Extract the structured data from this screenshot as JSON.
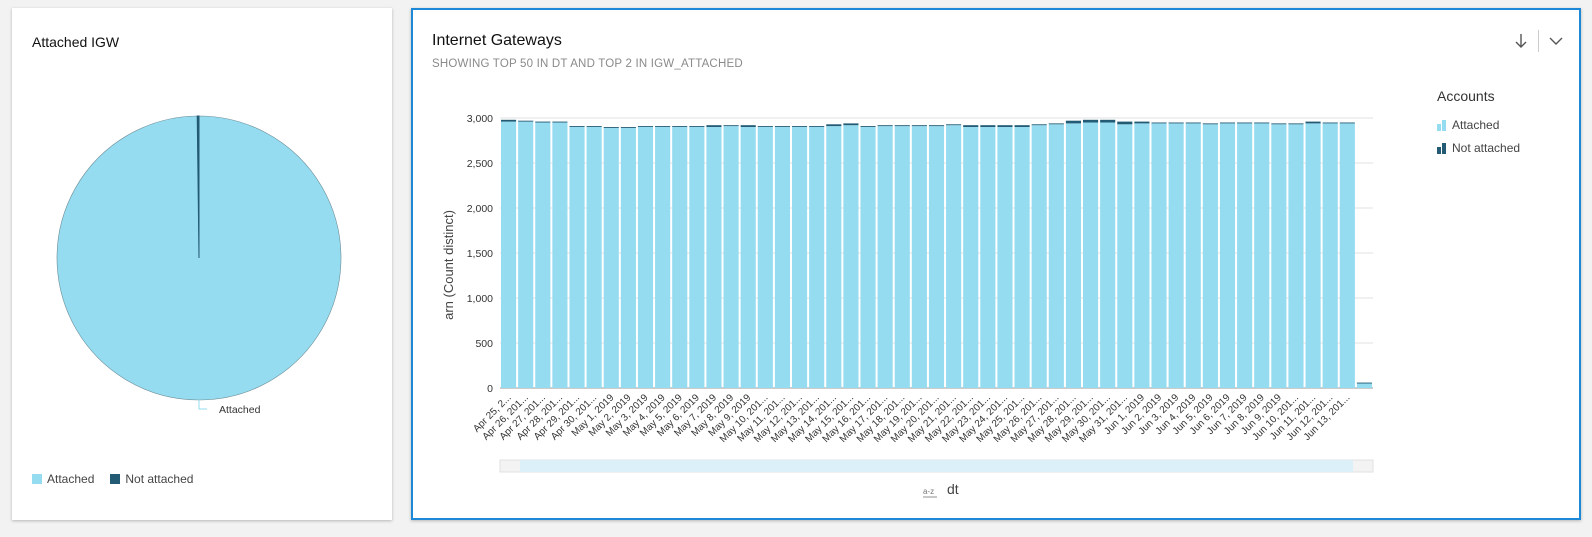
{
  "pie_card": {
    "title": "Attached IGW",
    "slice_label": "Attached",
    "legend": [
      {
        "label": "Attached",
        "color": "#95dcf0"
      },
      {
        "label": "Not attached",
        "color": "#235a74"
      }
    ]
  },
  "bar_card": {
    "title": "Internet Gateways",
    "subtitle": "SHOWING TOP 50 IN DT AND TOP 2 IN IGW_ATTACHED",
    "ylabel": "arn (Count distinct)",
    "xlabel": "dt",
    "sort_icon": "az-sort-icon",
    "legend_title": "Accounts",
    "legend": [
      {
        "label": "Attached",
        "color": "#95dcf0"
      },
      {
        "label": "Not attached",
        "color": "#235a74"
      }
    ],
    "icons": [
      "download-arrow-icon",
      "chevron-down-icon"
    ]
  },
  "chart_data": [
    {
      "type": "pie",
      "title": "Attached IGW",
      "slices": [
        {
          "label": "Attached",
          "value": 0.998,
          "color": "#95dcf0"
        },
        {
          "label": "Not attached",
          "value": 0.002,
          "color": "#235a74"
        }
      ]
    },
    {
      "type": "bar",
      "stacked": true,
      "title": "Internet Gateways",
      "xlabel": "dt",
      "ylabel": "arn (Count distinct)",
      "ylim": [
        0,
        3000
      ],
      "yticks": [
        "0",
        "500",
        "1,000",
        "1,500",
        "2,000",
        "2,500",
        "3,000"
      ],
      "categories": [
        "Apr 25, 2...",
        "Apr 26, 201...",
        "Apr 27, 201...",
        "Apr 28, 201...",
        "Apr 29, 201...",
        "Apr 30, 201...",
        "May 1, 2019",
        "May 2, 2019",
        "May 3, 2019",
        "May 4, 2019",
        "May 5, 2019",
        "May 6, 2019",
        "May 7, 2019",
        "May 8, 2019",
        "May 9, 2019",
        "May 10, 201...",
        "May 11, 201...",
        "May 12, 201...",
        "May 13, 201...",
        "May 14, 201...",
        "May 15, 201...",
        "May 16, 201...",
        "May 17, 201...",
        "May 18, 201...",
        "May 19, 201...",
        "May 20, 201...",
        "May 21, 201...",
        "May 22, 201...",
        "May 23, 201...",
        "May 24, 201...",
        "May 25, 201...",
        "May 26, 201...",
        "May 27, 201...",
        "May 28, 201...",
        "May 29, 201...",
        "May 30, 201...",
        "May 31, 201...",
        "Jun 1, 2019",
        "Jun 2, 2019",
        "Jun 3, 2019",
        "Jun 4, 2019",
        "Jun 5, 2019",
        "Jun 6, 2019",
        "Jun 7, 2019",
        "Jun 8, 2019",
        "Jun 9, 2019",
        "Jun 10, 201...",
        "Jun 11, 201...",
        "Jun 12, 201...",
        "Jun 13, 201..."
      ],
      "series": [
        {
          "name": "Attached",
          "color": "#95dcf0",
          "values": [
            2960,
            2960,
            2950,
            2950,
            2900,
            2900,
            2890,
            2890,
            2900,
            2900,
            2900,
            2900,
            2900,
            2910,
            2900,
            2900,
            2900,
            2900,
            2900,
            2910,
            2920,
            2900,
            2910,
            2910,
            2910,
            2910,
            2920,
            2900,
            2900,
            2900,
            2900,
            2920,
            2930,
            2940,
            2950,
            2950,
            2930,
            2940,
            2940,
            2940,
            2940,
            2930,
            2940,
            2940,
            2940,
            2930,
            2930,
            2940,
            2940,
            2940
          ]
        },
        {
          "name": "Not attached",
          "color": "#235a74",
          "values": [
            20,
            10,
            10,
            10,
            10,
            10,
            10,
            10,
            10,
            10,
            10,
            10,
            20,
            10,
            20,
            10,
            10,
            10,
            10,
            20,
            20,
            10,
            10,
            10,
            10,
            10,
            10,
            20,
            20,
            20,
            20,
            10,
            10,
            30,
            30,
            30,
            30,
            20,
            10,
            10,
            10,
            10,
            10,
            10,
            10,
            10,
            10,
            20,
            10,
            10
          ]
        }
      ],
      "extra_bar": {
        "Attached": 50,
        "Not attached": 10
      }
    }
  ]
}
